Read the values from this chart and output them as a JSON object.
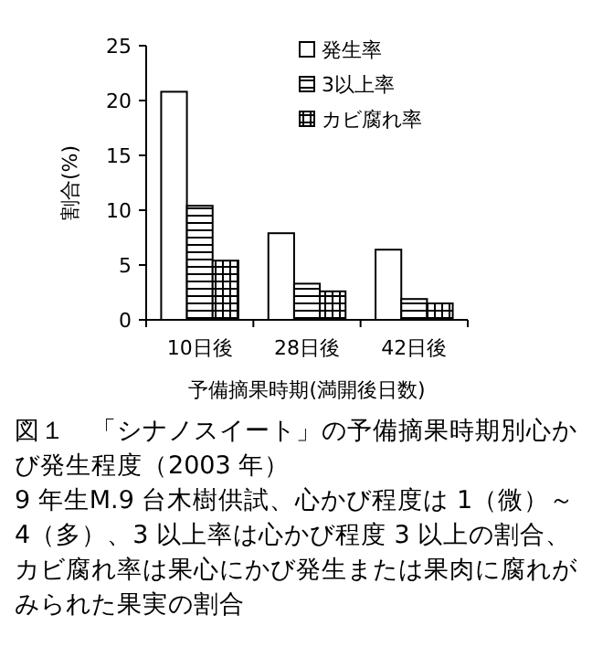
{
  "chart_data": {
    "type": "bar",
    "title": "図１　「シナノスイート」の予備摘果時期別心かび発生程度（2003 年）",
    "xlabel": "予備摘果時期(満開後日数)",
    "ylabel": "割合(%)",
    "annotations": [
      "9 年生M.9 台木樹供試、心かび程度は 1（微）～ 4（多）、3 以上率は心かび程度 3 以上の割合、カビ腐れ率は果心にかび発生または果肉に腐れがみられた果実の割合"
    ],
    "categories": [
      "10日後",
      "28日後",
      "42日後"
    ],
    "series": [
      {
        "name": "発生率",
        "color": "#ffffff",
        "values": [
          20.8,
          7.9,
          6.4
        ]
      },
      {
        "name": "3以上率",
        "color": "#000000",
        "values": [
          10.4,
          3.3,
          1.9
        ]
      },
      {
        "name": "カビ腐れ率",
        "color": "#000000",
        "values": [
          5.4,
          2.6,
          1.5
        ]
      }
    ],
    "ylim": [
      0,
      25
    ],
    "yticks": [
      0,
      5,
      10,
      15,
      20,
      25
    ],
    "grid": false,
    "legend": "top right"
  }
}
